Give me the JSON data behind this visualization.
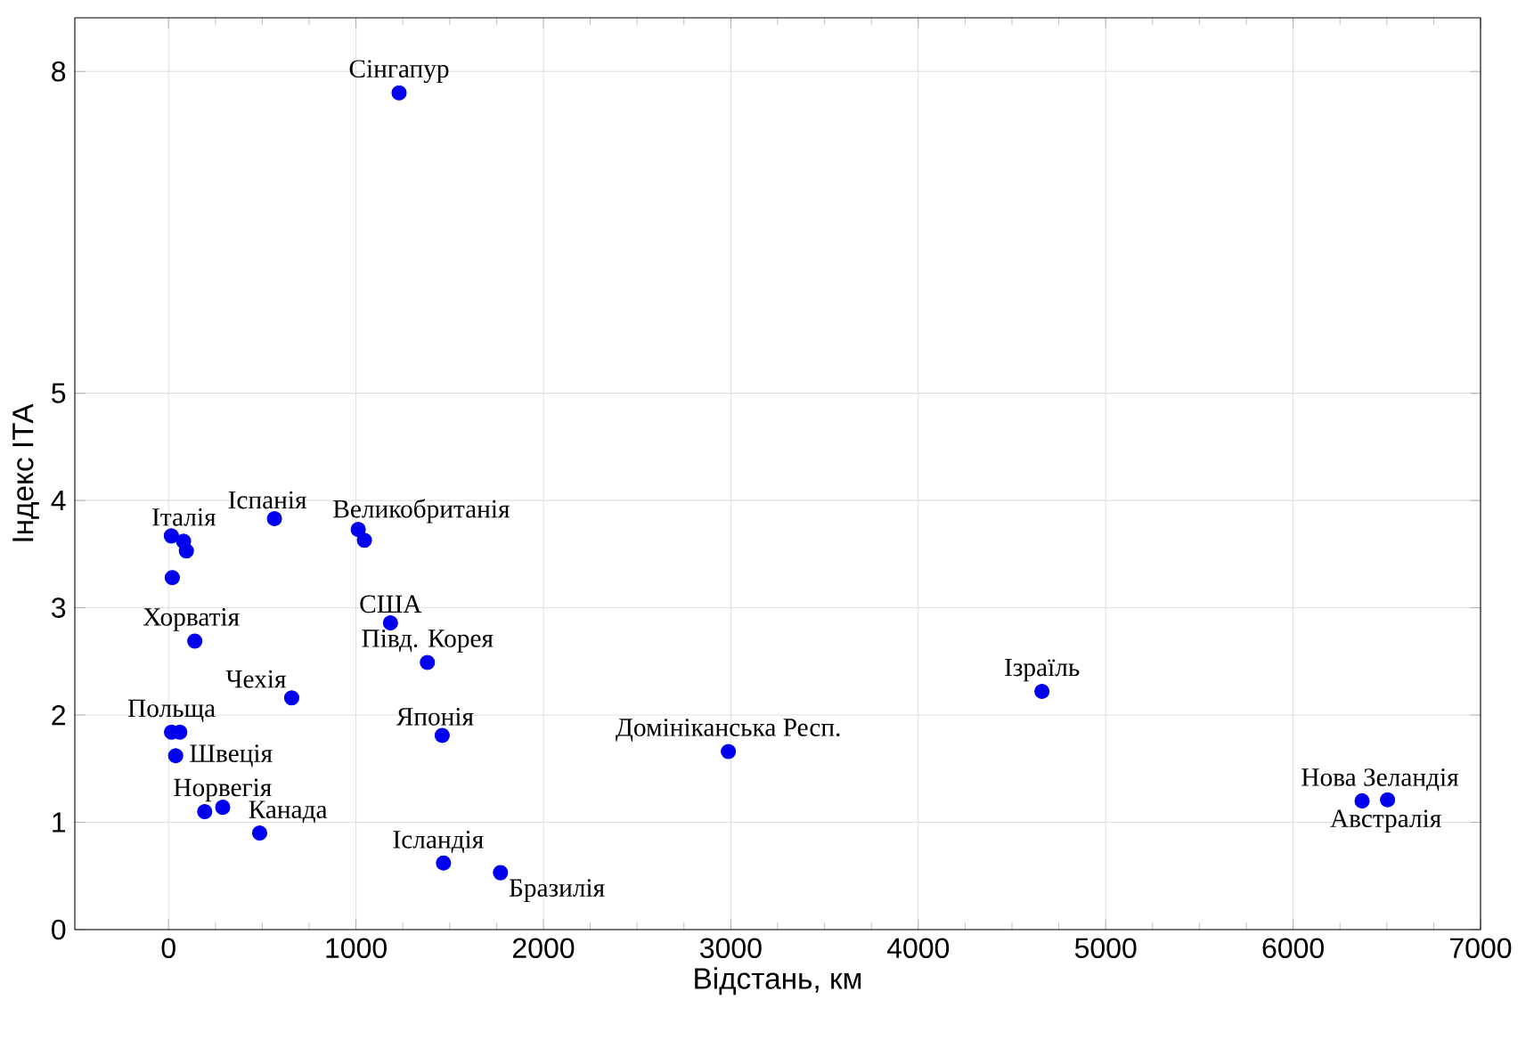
{
  "chart_data": {
    "type": "scatter",
    "color": "#0000ee",
    "marker": "circle",
    "grid": true,
    "xlabel": "Відстань, км",
    "ylabel": "Індекс ІТА",
    "xlim": [
      -500,
      7000
    ],
    "xticks": [
      0,
      1000,
      2000,
      3000,
      4000,
      5000,
      6000,
      7000
    ],
    "ylim": [
      0,
      8.5
    ],
    "yticks": [
      0,
      1,
      2,
      3,
      4,
      5,
      8
    ],
    "x": [
      1230,
      15,
      80,
      95,
      20,
      565,
      1012,
      1045,
      1184,
      1381,
      140,
      657,
      1460,
      16,
      60,
      38,
      193,
      289,
      486,
      1467,
      1771,
      2987,
      4660,
      6368,
      6504
    ],
    "values": [
      7.8,
      3.67,
      3.62,
      3.53,
      3.28,
      3.83,
      3.73,
      3.63,
      2.86,
      2.49,
      2.69,
      2.16,
      1.81,
      1.84,
      1.84,
      1.62,
      1.1,
      1.14,
      0.9,
      0.62,
      0.53,
      1.66,
      2.22,
      1.2,
      1.21
    ],
    "annotations": [
      {
        "text": "Сінгапур",
        "x": 1230,
        "y": 7.8
      },
      {
        "text": "Італія",
        "x": 15,
        "y": 3.67
      },
      {
        "text": "Іспанія",
        "x": 565,
        "y": 3.83
      },
      {
        "text": "Великобританія",
        "x": 1012,
        "y": 3.73
      },
      {
        "text": "Хорватія",
        "x": 140,
        "y": 2.69
      },
      {
        "text": "Чехія",
        "x": 657,
        "y": 2.16
      },
      {
        "text": "США",
        "x": 1184,
        "y": 2.86
      },
      {
        "text": "Півд. Корея",
        "x": 1381,
        "y": 2.49
      },
      {
        "text": "Японія",
        "x": 1460,
        "y": 1.81
      },
      {
        "text": "Польща",
        "x": 16,
        "y": 1.84
      },
      {
        "text": "Швеція",
        "x": 38,
        "y": 1.62
      },
      {
        "text": "Норвегія",
        "x": 193,
        "y": 1.1
      },
      {
        "text": "Канада",
        "x": 486,
        "y": 0.9
      },
      {
        "text": "Ісландія",
        "x": 1467,
        "y": 0.62
      },
      {
        "text": "Бразилія",
        "x": 1771,
        "y": 0.53
      },
      {
        "text": "Домініканська Респ.",
        "x": 2987,
        "y": 1.66
      },
      {
        "text": "Ізраїль",
        "x": 4660,
        "y": 2.22
      },
      {
        "text": "Нова Зеландія",
        "x": 6368,
        "y": 1.2
      },
      {
        "text": "Австралія",
        "x": 6504,
        "y": 1.21
      }
    ]
  }
}
